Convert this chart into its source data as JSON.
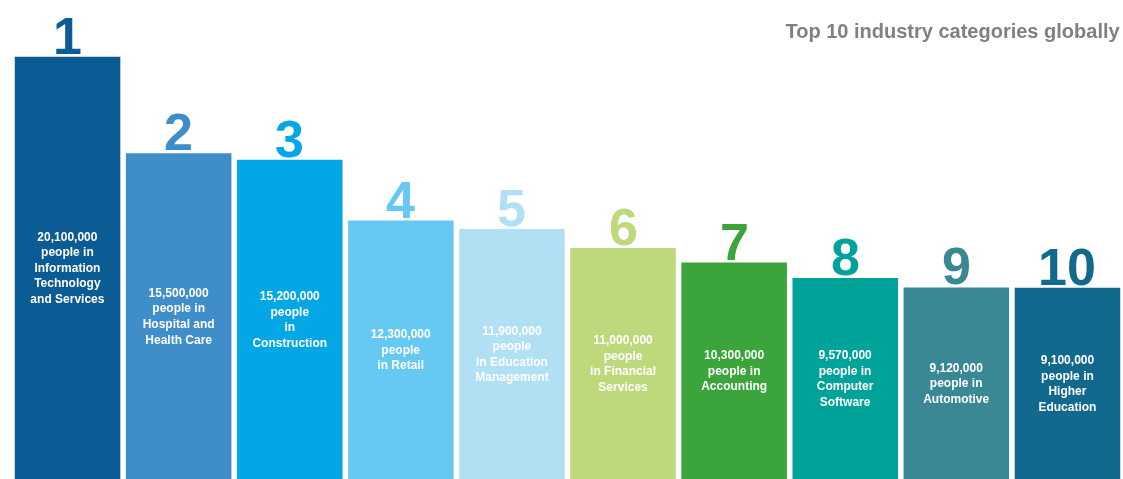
{
  "chart_data": {
    "type": "bar",
    "title": "Top 10 industry categories globally",
    "categories": [
      "1",
      "2",
      "3",
      "4",
      "5",
      "6",
      "7",
      "8",
      "9",
      "10"
    ],
    "values": [
      20100000,
      15500000,
      15200000,
      12300000,
      11900000,
      11000000,
      10300000,
      9570000,
      9120000,
      9100000
    ],
    "colors": [
      "#0b5b95",
      "#3f8ec9",
      "#03a7e6",
      "#66c9f3",
      "#b1e0f4",
      "#bdd97b",
      "#3ba43a",
      "#00a39a",
      "#3a8893",
      "#11698e"
    ],
    "value_labels": [
      "20,100,000\npeople in\nInformation\nTechnology\nand Services",
      "15,500,000\npeople in\nHospital and\nHealth Care",
      "15,200,000\npeople\nin\nConstruction",
      "12,300,000\npeople\nin Retail",
      "11,900,000\npeople\nin Education\nManagement",
      "11,000,000\npeople\nin Financial\nServices",
      "10,300,000\npeople in\nAccounting",
      "9,570,000\npeople in\nComputer\nSoftware",
      "9,120,000\npeople in\nAutomotive",
      "9,100,000\npeople in\nHigher\nEducation"
    ],
    "ylim": [
      0,
      22800000
    ],
    "tick_labels": false,
    "grid": false,
    "legend": false
  }
}
